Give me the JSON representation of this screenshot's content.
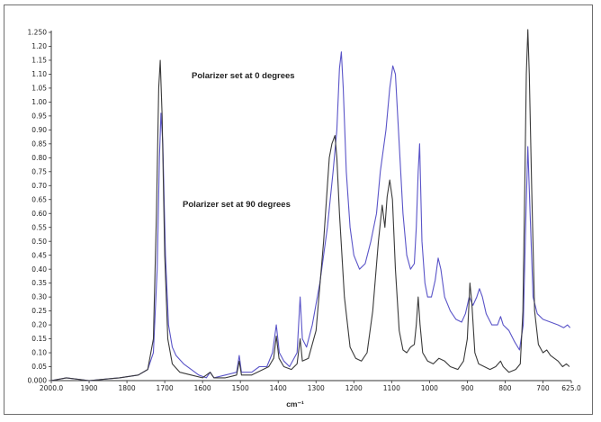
{
  "chart_data": {
    "type": "line",
    "xlabel": "cm⁻¹",
    "ylabel": "",
    "xlim": [
      2000.0,
      625.0
    ],
    "ylim": [
      0.0,
      1.25
    ],
    "x_ticks": [
      2000.0,
      1900,
      1800,
      1700,
      1600,
      1500,
      1400,
      1300,
      1200,
      1100,
      1000,
      900,
      800,
      700,
      625.0
    ],
    "x_tick_labels": [
      "2000.0",
      "1900",
      "1800",
      "1700",
      "1600",
      "1500",
      "1400",
      "1300",
      "1200",
      "1100",
      "1000",
      "900",
      "800",
      "700",
      "625.0"
    ],
    "y_ticks": [
      0.0,
      0.05,
      0.1,
      0.15,
      0.2,
      0.25,
      0.3,
      0.35,
      0.4,
      0.45,
      0.5,
      0.55,
      0.6,
      0.65,
      0.7,
      0.75,
      0.8,
      0.85,
      0.9,
      0.95,
      1.0,
      1.05,
      1.1,
      1.15,
      1.2,
      1.25
    ],
    "y_tick_labels": [
      "0.000",
      "0.05",
      "0.10",
      "0.15",
      "0.20",
      "0.25",
      "0.30",
      "0.35",
      "0.40",
      "0.45",
      "0.50",
      "0.55",
      "0.60",
      "0.65",
      "0.70",
      "0.75",
      "0.80",
      "0.85",
      "0.90",
      "0.95",
      "1.00",
      "1.05",
      "1.10",
      "1.15",
      "1.20",
      "1.250"
    ],
    "annotations": [
      "Polarizer set at 0 degrees",
      "Polarizer set at 90 degrees"
    ],
    "grid": false,
    "series": [
      {
        "color": "#5a54c8",
        "points": [
          [
            2000,
            0.0
          ],
          [
            1960,
            0.01
          ],
          [
            1900,
            0.0
          ],
          [
            1820,
            0.01
          ],
          [
            1770,
            0.02
          ],
          [
            1745,
            0.04
          ],
          [
            1730,
            0.1
          ],
          [
            1720,
            0.4
          ],
          [
            1714,
            0.8
          ],
          [
            1710,
            0.96
          ],
          [
            1705,
            0.85
          ],
          [
            1698,
            0.45
          ],
          [
            1690,
            0.2
          ],
          [
            1680,
            0.12
          ],
          [
            1670,
            0.09
          ],
          [
            1650,
            0.06
          ],
          [
            1630,
            0.04
          ],
          [
            1610,
            0.02
          ],
          [
            1590,
            0.01
          ],
          [
            1580,
            0.03
          ],
          [
            1570,
            0.01
          ],
          [
            1540,
            0.02
          ],
          [
            1510,
            0.03
          ],
          [
            1503,
            0.09
          ],
          [
            1497,
            0.03
          ],
          [
            1470,
            0.03
          ],
          [
            1450,
            0.05
          ],
          [
            1430,
            0.05
          ],
          [
            1415,
            0.1
          ],
          [
            1405,
            0.2
          ],
          [
            1397,
            0.1
          ],
          [
            1385,
            0.07
          ],
          [
            1370,
            0.05
          ],
          [
            1350,
            0.1
          ],
          [
            1342,
            0.3
          ],
          [
            1336,
            0.15
          ],
          [
            1325,
            0.12
          ],
          [
            1310,
            0.2
          ],
          [
            1290,
            0.35
          ],
          [
            1270,
            0.55
          ],
          [
            1255,
            0.75
          ],
          [
            1245,
            0.9
          ],
          [
            1238,
            1.12
          ],
          [
            1233,
            1.18
          ],
          [
            1228,
            1.05
          ],
          [
            1220,
            0.75
          ],
          [
            1210,
            0.55
          ],
          [
            1200,
            0.45
          ],
          [
            1185,
            0.4
          ],
          [
            1170,
            0.42
          ],
          [
            1155,
            0.5
          ],
          [
            1140,
            0.6
          ],
          [
            1130,
            0.75
          ],
          [
            1115,
            0.9
          ],
          [
            1105,
            1.05
          ],
          [
            1097,
            1.13
          ],
          [
            1090,
            1.1
          ],
          [
            1080,
            0.85
          ],
          [
            1070,
            0.6
          ],
          [
            1060,
            0.45
          ],
          [
            1050,
            0.4
          ],
          [
            1040,
            0.42
          ],
          [
            1035,
            0.55
          ],
          [
            1030,
            0.75
          ],
          [
            1026,
            0.85
          ],
          [
            1020,
            0.5
          ],
          [
            1012,
            0.35
          ],
          [
            1005,
            0.3
          ],
          [
            995,
            0.3
          ],
          [
            985,
            0.36
          ],
          [
            977,
            0.44
          ],
          [
            970,
            0.4
          ],
          [
            960,
            0.3
          ],
          [
            945,
            0.25
          ],
          [
            930,
            0.22
          ],
          [
            915,
            0.21
          ],
          [
            905,
            0.24
          ],
          [
            895,
            0.3
          ],
          [
            885,
            0.27
          ],
          [
            875,
            0.3
          ],
          [
            868,
            0.33
          ],
          [
            860,
            0.3
          ],
          [
            850,
            0.24
          ],
          [
            835,
            0.2
          ],
          [
            820,
            0.2
          ],
          [
            812,
            0.23
          ],
          [
            805,
            0.2
          ],
          [
            790,
            0.18
          ],
          [
            775,
            0.14
          ],
          [
            762,
            0.11
          ],
          [
            752,
            0.2
          ],
          [
            745,
            0.6
          ],
          [
            740,
            0.84
          ],
          [
            734,
            0.6
          ],
          [
            726,
            0.3
          ],
          [
            715,
            0.24
          ],
          [
            700,
            0.22
          ],
          [
            680,
            0.21
          ],
          [
            660,
            0.2
          ],
          [
            645,
            0.19
          ],
          [
            635,
            0.2
          ],
          [
            628,
            0.19
          ]
        ]
      },
      {
        "color": "#3a3a3a",
        "points": [
          [
            2000,
            0.0
          ],
          [
            1960,
            0.01
          ],
          [
            1900,
            0.0
          ],
          [
            1820,
            0.01
          ],
          [
            1770,
            0.02
          ],
          [
            1745,
            0.04
          ],
          [
            1730,
            0.15
          ],
          [
            1722,
            0.6
          ],
          [
            1716,
            1.05
          ],
          [
            1712,
            1.15
          ],
          [
            1707,
            0.95
          ],
          [
            1700,
            0.45
          ],
          [
            1692,
            0.15
          ],
          [
            1680,
            0.06
          ],
          [
            1660,
            0.03
          ],
          [
            1630,
            0.02
          ],
          [
            1600,
            0.01
          ],
          [
            1580,
            0.03
          ],
          [
            1570,
            0.01
          ],
          [
            1540,
            0.01
          ],
          [
            1510,
            0.02
          ],
          [
            1503,
            0.07
          ],
          [
            1497,
            0.02
          ],
          [
            1470,
            0.02
          ],
          [
            1440,
            0.04
          ],
          [
            1425,
            0.05
          ],
          [
            1412,
            0.08
          ],
          [
            1405,
            0.16
          ],
          [
            1398,
            0.08
          ],
          [
            1385,
            0.05
          ],
          [
            1365,
            0.04
          ],
          [
            1350,
            0.06
          ],
          [
            1342,
            0.15
          ],
          [
            1336,
            0.07
          ],
          [
            1320,
            0.08
          ],
          [
            1300,
            0.18
          ],
          [
            1280,
            0.5
          ],
          [
            1265,
            0.8
          ],
          [
            1258,
            0.85
          ],
          [
            1250,
            0.88
          ],
          [
            1245,
            0.8
          ],
          [
            1238,
            0.6
          ],
          [
            1225,
            0.3
          ],
          [
            1210,
            0.12
          ],
          [
            1195,
            0.08
          ],
          [
            1180,
            0.07
          ],
          [
            1165,
            0.1
          ],
          [
            1150,
            0.25
          ],
          [
            1135,
            0.5
          ],
          [
            1125,
            0.63
          ],
          [
            1118,
            0.55
          ],
          [
            1112,
            0.66
          ],
          [
            1105,
            0.72
          ],
          [
            1098,
            0.65
          ],
          [
            1090,
            0.4
          ],
          [
            1080,
            0.18
          ],
          [
            1070,
            0.11
          ],
          [
            1060,
            0.1
          ],
          [
            1050,
            0.12
          ],
          [
            1040,
            0.13
          ],
          [
            1035,
            0.2
          ],
          [
            1030,
            0.3
          ],
          [
            1025,
            0.2
          ],
          [
            1018,
            0.1
          ],
          [
            1005,
            0.07
          ],
          [
            990,
            0.06
          ],
          [
            975,
            0.08
          ],
          [
            960,
            0.07
          ],
          [
            945,
            0.05
          ],
          [
            925,
            0.04
          ],
          [
            910,
            0.07
          ],
          [
            900,
            0.15
          ],
          [
            893,
            0.35
          ],
          [
            888,
            0.28
          ],
          [
            880,
            0.1
          ],
          [
            870,
            0.06
          ],
          [
            855,
            0.05
          ],
          [
            840,
            0.04
          ],
          [
            825,
            0.05
          ],
          [
            812,
            0.07
          ],
          [
            805,
            0.05
          ],
          [
            790,
            0.03
          ],
          [
            772,
            0.04
          ],
          [
            760,
            0.06
          ],
          [
            753,
            0.25
          ],
          [
            748,
            0.7
          ],
          [
            744,
            1.1
          ],
          [
            740,
            1.26
          ],
          [
            736,
            1.1
          ],
          [
            730,
            0.7
          ],
          [
            722,
            0.25
          ],
          [
            712,
            0.13
          ],
          [
            700,
            0.1
          ],
          [
            690,
            0.11
          ],
          [
            680,
            0.09
          ],
          [
            670,
            0.08
          ],
          [
            660,
            0.07
          ],
          [
            648,
            0.05
          ],
          [
            638,
            0.06
          ],
          [
            630,
            0.05
          ]
        ]
      }
    ]
  }
}
